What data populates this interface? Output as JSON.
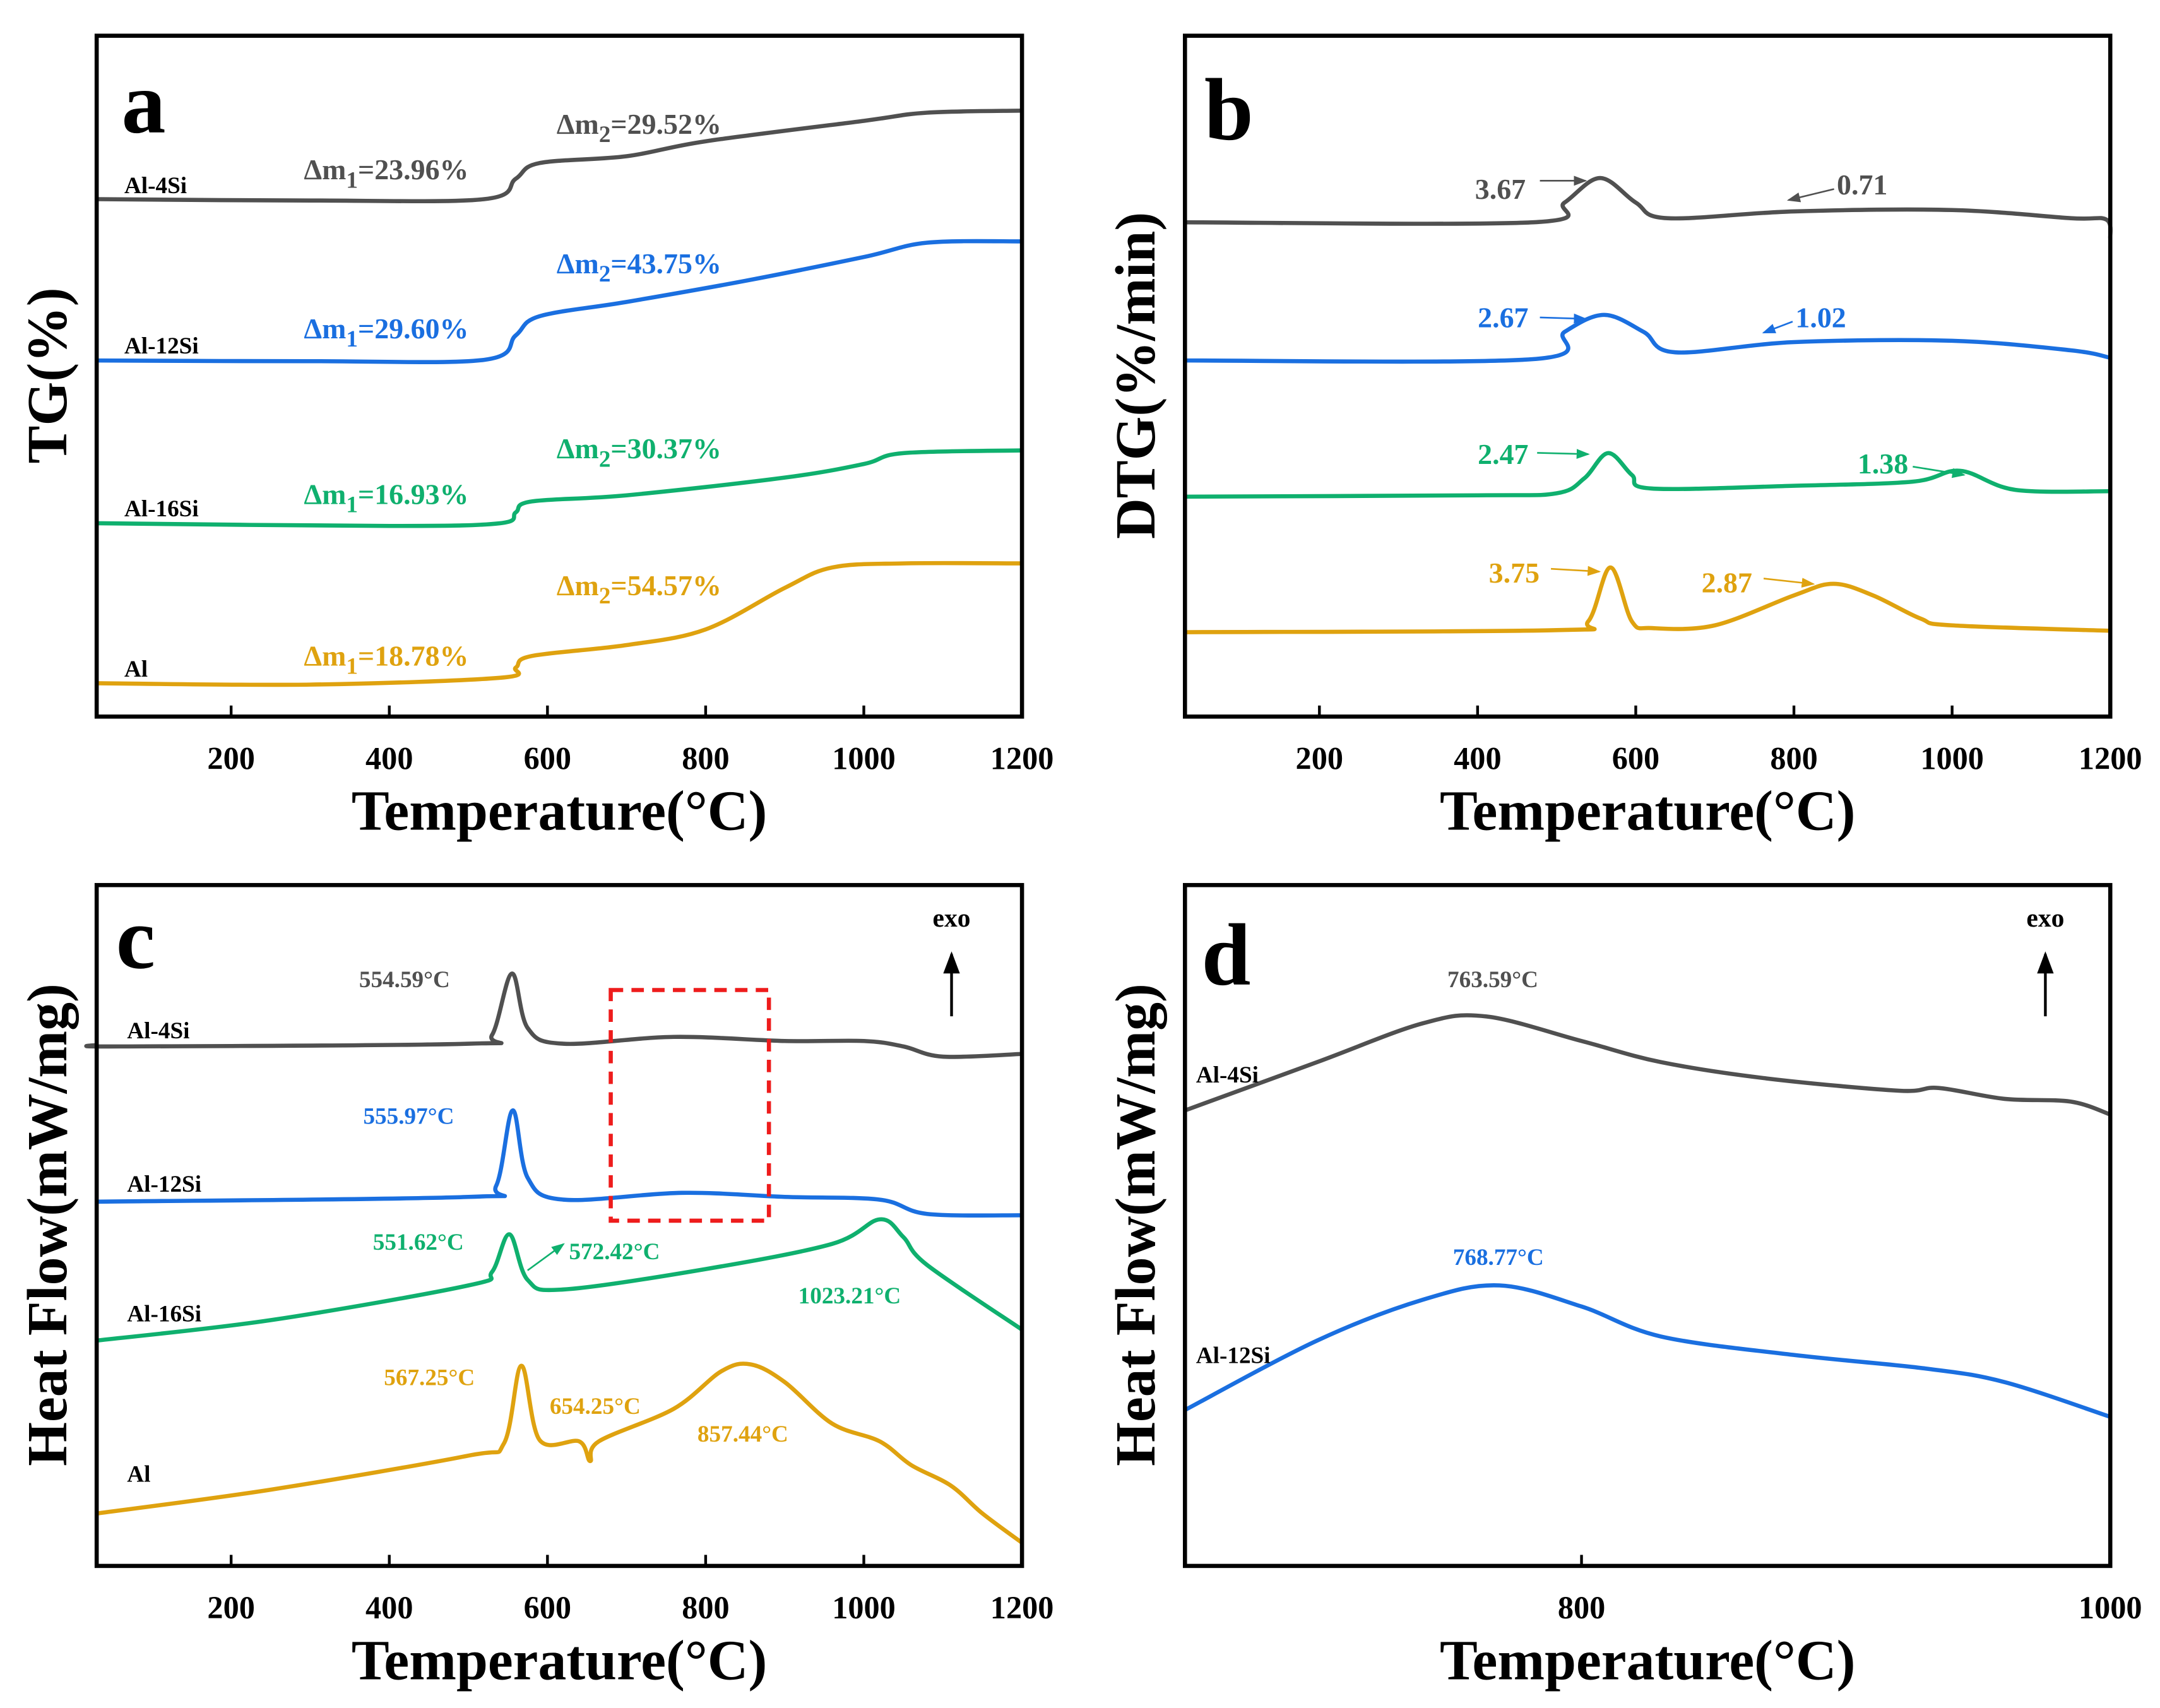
{
  "colors": {
    "Al-4Si": "#505050",
    "Al-12Si": "#1a6fe0",
    "Al-16Si": "#0fb06e",
    "Al": "#dfa20f",
    "box": "#ee1c1c"
  },
  "chart_data": [
    {
      "panel": "a",
      "type": "line",
      "xlabel": "Temperature(°C)",
      "ylabel": "TG(%)",
      "xlim": [
        30,
        1200
      ],
      "ylim": [
        0,
        100
      ],
      "xticks": [
        "200",
        "400",
        "600",
        "800",
        "1000",
        "1200"
      ],
      "series": [
        {
          "name": "Al-4Si",
          "points": [
            [
              30,
              76
            ],
            [
              300,
              75.8
            ],
            [
              520,
              76
            ],
            [
              560,
              79
            ],
            [
              590,
              81.3
            ],
            [
              700,
              82.3
            ],
            [
              800,
              84.5
            ],
            [
              1000,
              87.5
            ],
            [
              1080,
              88.7
            ],
            [
              1200,
              89
            ]
          ]
        },
        {
          "name": "Al-12Si",
          "points": [
            [
              30,
              52.3
            ],
            [
              300,
              52.2
            ],
            [
              520,
              52.4
            ],
            [
              560,
              56
            ],
            [
              590,
              58.8
            ],
            [
              700,
              60.9
            ],
            [
              850,
              64
            ],
            [
              1000,
              67.5
            ],
            [
              1080,
              69.6
            ],
            [
              1200,
              69.8
            ]
          ]
        },
        {
          "name": "Al-16Si",
          "points": [
            [
              30,
              28.4
            ],
            [
              400,
              28
            ],
            [
              540,
              28.4
            ],
            [
              560,
              30
            ],
            [
              580,
              31.6
            ],
            [
              700,
              32.5
            ],
            [
              900,
              35.1
            ],
            [
              1000,
              37.1
            ],
            [
              1050,
              38.7
            ],
            [
              1200,
              39.1
            ]
          ]
        },
        {
          "name": "Al",
          "points": [
            [
              30,
              4.9
            ],
            [
              300,
              4.7
            ],
            [
              540,
              5.7
            ],
            [
              560,
              7.2
            ],
            [
              580,
              8.9
            ],
            [
              700,
              10.5
            ],
            [
              800,
              12.8
            ],
            [
              900,
              18.9
            ],
            [
              960,
              21.9
            ],
            [
              1050,
              22.5
            ],
            [
              1200,
              22.5
            ]
          ]
        }
      ],
      "annotations": [
        {
          "series": "Al-4Si",
          "m1": "23.96%",
          "m2": "29.52%"
        },
        {
          "series": "Al-12Si",
          "m1": "29.60%",
          "m2": "43.75%"
        },
        {
          "series": "Al-16Si",
          "m1": "16.93%",
          "m2": "30.37%"
        },
        {
          "series": "Al",
          "m1": "18.78%",
          "m2": "54.57%"
        }
      ]
    },
    {
      "panel": "b",
      "type": "line",
      "xlabel": "Temperature(°C)",
      "ylabel": "DTG(%/min)",
      "xlim": [
        30,
        1200
      ],
      "ylim": [
        0,
        100
      ],
      "xticks": [
        "200",
        "400",
        "600",
        "800",
        "1000",
        "1200"
      ],
      "series": [
        {
          "name": "Al-4Si",
          "points": [
            [
              30,
              72.6
            ],
            [
              470,
              72.6
            ],
            [
              510,
              75.5
            ],
            [
              555,
              79.1
            ],
            [
              600,
              75.5
            ],
            [
              640,
              73.2
            ],
            [
              800,
              74.2
            ],
            [
              1000,
              74.4
            ],
            [
              1150,
              73.2
            ],
            [
              1195,
              73
            ],
            [
              1200,
              70.2
            ]
          ]
        },
        {
          "name": "Al-12Si",
          "points": [
            [
              30,
              52.3
            ],
            [
              470,
              52.5
            ],
            [
              510,
              56.5
            ],
            [
              560,
              59
            ],
            [
              610,
              56.5
            ],
            [
              650,
              53.5
            ],
            [
              800,
              55
            ],
            [
              1000,
              55.2
            ],
            [
              1150,
              53.8
            ],
            [
              1200,
              52.7
            ]
          ]
        },
        {
          "name": "Al-16Si",
          "points": [
            [
              30,
              32.3
            ],
            [
              400,
              32.5
            ],
            [
              500,
              32.8
            ],
            [
              535,
              35
            ],
            [
              565,
              38.7
            ],
            [
              595,
              35.5
            ],
            [
              620,
              33.5
            ],
            [
              800,
              33.9
            ],
            [
              950,
              34.5
            ],
            [
              1010,
              36.1
            ],
            [
              1080,
              33.3
            ],
            [
              1200,
              33.1
            ]
          ]
        },
        {
          "name": "Al",
          "points": [
            [
              30,
              12.4
            ],
            [
              500,
              12.7
            ],
            [
              540,
              14
            ],
            [
              568,
              21.9
            ],
            [
              595,
              14
            ],
            [
              620,
              13
            ],
            [
              700,
              13.4
            ],
            [
              800,
              17.8
            ],
            [
              850,
              19.5
            ],
            [
              900,
              17.8
            ],
            [
              960,
              14.4
            ],
            [
              1000,
              13.4
            ],
            [
              1200,
              12.6
            ]
          ]
        }
      ],
      "annotations": [
        {
          "series": "Al-4Si",
          "v1": "3.67",
          "v2": "0.71"
        },
        {
          "series": "Al-12Si",
          "v1": "2.67",
          "v2": "1.02"
        },
        {
          "series": "Al-16Si",
          "v1": "2.47",
          "v2": "1.38"
        },
        {
          "series": "Al",
          "v1": "3.75",
          "v2": "2.87"
        }
      ]
    },
    {
      "panel": "c",
      "type": "line",
      "xlabel": "Temperature(°C)",
      "ylabel": "Heat Flow(mW/mg)",
      "xlim": [
        30,
        1200
      ],
      "ylim": [
        0,
        100
      ],
      "xticks": [
        "200",
        "400",
        "600",
        "800",
        "1000",
        "1200"
      ],
      "exo_label": "exo",
      "series": [
        {
          "name": "Al-4Si",
          "points": [
            [
              30,
              76.5
            ],
            [
              60,
              76.3
            ],
            [
              500,
              76.7
            ],
            [
              530,
              78
            ],
            [
              555,
              87
            ],
            [
              575,
              79
            ],
            [
              620,
              76.7
            ],
            [
              760,
              77.7
            ],
            [
              900,
              77.1
            ],
            [
              1000,
              77.1
            ],
            [
              1050,
              76.3
            ],
            [
              1100,
              74.8
            ],
            [
              1200,
              75.2
            ]
          ]
        },
        {
          "name": "Al-12Si",
          "points": [
            [
              30,
              53.5
            ],
            [
              500,
              54.2
            ],
            [
              535,
              55.8
            ],
            [
              556,
              66.9
            ],
            [
              575,
              57
            ],
            [
              620,
              53.8
            ],
            [
              770,
              54.8
            ],
            [
              900,
              54.2
            ],
            [
              1020,
              53.8
            ],
            [
              1080,
              51.7
            ],
            [
              1200,
              51.5
            ]
          ]
        },
        {
          "name": "Al-16Si",
          "points": [
            [
              30,
              33.1
            ],
            [
              250,
              36.1
            ],
            [
              500,
              41.2
            ],
            [
              530,
              43.2
            ],
            [
              552,
              48.7
            ],
            [
              575,
              42
            ],
            [
              620,
              40.6
            ],
            [
              800,
              43.6
            ],
            [
              960,
              47.3
            ],
            [
              1020,
              50.9
            ],
            [
              1050,
              48.3
            ],
            [
              1080,
              44.2
            ],
            [
              1200,
              34.7
            ]
          ]
        },
        {
          "name": "Al",
          "points": [
            [
              30,
              7.7
            ],
            [
              250,
              11.2
            ],
            [
              500,
              16.2
            ],
            [
              545,
              18
            ],
            [
              567,
              29.4
            ],
            [
              590,
              18.5
            ],
            [
              640,
              18.3
            ],
            [
              654,
              15.4
            ],
            [
              665,
              18.3
            ],
            [
              760,
              23.1
            ],
            [
              820,
              28.6
            ],
            [
              857,
              29.6
            ],
            [
              900,
              27
            ],
            [
              960,
              20.9
            ],
            [
              1020,
              18.3
            ],
            [
              1060,
              14.8
            ],
            [
              1110,
              11.8
            ],
            [
              1150,
              7.7
            ],
            [
              1200,
              3.4
            ]
          ]
        }
      ],
      "annotations": [
        {
          "series": "Al-4Si",
          "peaks": [
            "554.59°C"
          ]
        },
        {
          "series": "Al-12Si",
          "peaks": [
            "555.97°C"
          ]
        },
        {
          "series": "Al-16Si",
          "peaks": [
            "551.62°C",
            "572.42°C",
            "1023.21°C"
          ]
        },
        {
          "series": "Al",
          "peaks": [
            "567.25°C",
            "654.25°C",
            "857.44°C"
          ]
        }
      ],
      "highlight_range": [
        680,
        880
      ]
    },
    {
      "panel": "d",
      "type": "line",
      "xlabel": "Temperature(°C)",
      "ylabel": "Heat Flow(mW/mg)",
      "xlim": [
        650,
        1000
      ],
      "ylim": [
        0,
        100
      ],
      "xticks": [
        "800",
        "1000"
      ],
      "exo_label": "exo",
      "series": [
        {
          "name": "Al-4Si",
          "points": [
            [
              650,
              66.9
            ],
            [
              700,
              74
            ],
            [
              740,
              79.7
            ],
            [
              764,
              80.7
            ],
            [
              800,
              77.1
            ],
            [
              830,
              74
            ],
            [
              870,
              71.6
            ],
            [
              920,
              69.8
            ],
            [
              935,
              70.2
            ],
            [
              960,
              68.6
            ],
            [
              985,
              68.2
            ],
            [
              1000,
              66.3
            ]
          ]
        },
        {
          "name": "Al-12Si",
          "points": [
            [
              650,
              22.9
            ],
            [
              700,
              33.1
            ],
            [
              740,
              39.1
            ],
            [
              769,
              41.2
            ],
            [
              800,
              38.1
            ],
            [
              830,
              33.7
            ],
            [
              880,
              31.0
            ],
            [
              930,
              29.0
            ],
            [
              960,
              27
            ],
            [
              1000,
              21.9
            ]
          ]
        }
      ],
      "annotations": [
        {
          "series": "Al-4Si",
          "peaks": [
            "763.59°C"
          ]
        },
        {
          "series": "Al-12Si",
          "peaks": [
            "768.77°C"
          ]
        }
      ]
    }
  ]
}
